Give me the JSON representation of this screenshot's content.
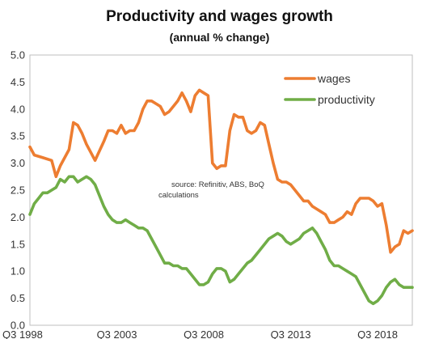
{
  "chart_data": {
    "type": "line",
    "title": "Productivity and wages growth",
    "subtitle": "(annual % change)",
    "xlabel": "",
    "ylabel": "",
    "ylim": [
      0.0,
      5.0
    ],
    "yticks": [
      "0.0",
      "0.5",
      "1.0",
      "1.5",
      "2.0",
      "2.5",
      "3.0",
      "3.5",
      "4.0",
      "4.5",
      "5.0"
    ],
    "xticks": [
      {
        "label": "Q3 1998",
        "x": 1998.75
      },
      {
        "label": "Q3 2003",
        "x": 2003.75
      },
      {
        "label": "Q3 2008",
        "x": 2008.75
      },
      {
        "label": "Q3 2013",
        "x": 2013.75
      },
      {
        "label": "Q3 2018",
        "x": 2018.75
      }
    ],
    "xlim": [
      1998.75,
      2020.75
    ],
    "legend_position": "top-right",
    "annotation": [
      "source:  Refinitiv, ABS, BoQ",
      "calculations"
    ],
    "series": [
      {
        "name": "wages",
        "color": "#ED7D31",
        "x": [
          1998.75,
          1999.0,
          1999.5,
          2000.0,
          2000.25,
          2000.5,
          2000.75,
          2001.0,
          2001.25,
          2001.5,
          2001.75,
          2002.0,
          2002.5,
          2003.0,
          2003.25,
          2003.5,
          2003.75,
          2004.0,
          2004.25,
          2004.5,
          2004.75,
          2005.0,
          2005.25,
          2005.5,
          2005.75,
          2006.0,
          2006.25,
          2006.5,
          2006.75,
          2007.0,
          2007.25,
          2007.5,
          2007.75,
          2008.0,
          2008.25,
          2008.5,
          2008.75,
          2009.0,
          2009.25,
          2009.5,
          2009.75,
          2010.0,
          2010.25,
          2010.5,
          2010.75,
          2011.0,
          2011.25,
          2011.5,
          2011.75,
          2012.0,
          2012.25,
          2012.5,
          2012.75,
          2013.0,
          2013.25,
          2013.5,
          2013.75,
          2014.0,
          2014.25,
          2014.5,
          2014.75,
          2015.0,
          2015.25,
          2015.5,
          2015.75,
          2016.0,
          2016.25,
          2016.5,
          2016.75,
          2017.0,
          2017.25,
          2017.5,
          2017.75,
          2018.0,
          2018.25,
          2018.5,
          2018.75,
          2019.0,
          2019.25,
          2019.5,
          2019.75,
          2020.0,
          2020.25,
          2020.5,
          2020.75
        ],
        "values": [
          3.3,
          3.15,
          3.1,
          3.05,
          2.75,
          2.95,
          3.1,
          3.25,
          3.75,
          3.7,
          3.55,
          3.35,
          3.05,
          3.4,
          3.6,
          3.6,
          3.55,
          3.7,
          3.55,
          3.6,
          3.6,
          3.75,
          4.0,
          4.15,
          4.15,
          4.1,
          4.05,
          3.9,
          3.95,
          4.05,
          4.15,
          4.3,
          4.15,
          3.95,
          4.25,
          4.35,
          4.3,
          4.25,
          3.0,
          2.9,
          2.95,
          2.95,
          3.6,
          3.9,
          3.85,
          3.85,
          3.6,
          3.55,
          3.6,
          3.75,
          3.7,
          3.35,
          3.0,
          2.7,
          2.65,
          2.65,
          2.6,
          2.5,
          2.4,
          2.3,
          2.3,
          2.2,
          2.15,
          2.1,
          2.05,
          1.9,
          1.9,
          1.95,
          2.0,
          2.1,
          2.05,
          2.25,
          2.35,
          2.35,
          2.35,
          2.3,
          2.2,
          2.25,
          1.85,
          1.35,
          1.45,
          1.5,
          1.75,
          1.7,
          1.75
        ]
      },
      {
        "name": "productivity",
        "color": "#70AD47",
        "x": [
          1998.75,
          1999.0,
          1999.25,
          1999.5,
          1999.75,
          2000.0,
          2000.25,
          2000.5,
          2000.75,
          2001.0,
          2001.25,
          2001.5,
          2001.75,
          2002.0,
          2002.25,
          2002.5,
          2002.75,
          2003.0,
          2003.25,
          2003.5,
          2003.75,
          2004.0,
          2004.25,
          2004.5,
          2004.75,
          2005.0,
          2005.25,
          2005.5,
          2005.75,
          2006.0,
          2006.25,
          2006.5,
          2006.75,
          2007.0,
          2007.25,
          2007.5,
          2007.75,
          2008.0,
          2008.25,
          2008.5,
          2008.75,
          2009.0,
          2009.25,
          2009.5,
          2009.75,
          2010.0,
          2010.25,
          2010.5,
          2010.75,
          2011.0,
          2011.25,
          2011.5,
          2011.75,
          2012.0,
          2012.25,
          2012.5,
          2012.75,
          2013.0,
          2013.25,
          2013.5,
          2013.75,
          2014.0,
          2014.25,
          2014.5,
          2014.75,
          2015.0,
          2015.25,
          2015.5,
          2015.75,
          2016.0,
          2016.25,
          2016.5,
          2016.75,
          2017.0,
          2017.25,
          2017.5,
          2017.75,
          2018.0,
          2018.25,
          2018.5,
          2018.75,
          2019.0,
          2019.25,
          2019.5,
          2019.75,
          2020.0,
          2020.25,
          2020.5,
          2020.75
        ],
        "values": [
          2.05,
          2.25,
          2.35,
          2.45,
          2.45,
          2.5,
          2.55,
          2.7,
          2.65,
          2.75,
          2.75,
          2.65,
          2.7,
          2.75,
          2.7,
          2.6,
          2.4,
          2.2,
          2.05,
          1.95,
          1.9,
          1.9,
          1.95,
          1.9,
          1.85,
          1.8,
          1.8,
          1.75,
          1.6,
          1.45,
          1.3,
          1.15,
          1.15,
          1.1,
          1.1,
          1.05,
          1.05,
          0.95,
          0.85,
          0.75,
          0.75,
          0.8,
          0.95,
          1.05,
          1.05,
          1.0,
          0.8,
          0.85,
          0.95,
          1.05,
          1.15,
          1.2,
          1.3,
          1.4,
          1.5,
          1.6,
          1.65,
          1.7,
          1.65,
          1.55,
          1.5,
          1.55,
          1.6,
          1.7,
          1.75,
          1.8,
          1.7,
          1.55,
          1.4,
          1.2,
          1.1,
          1.1,
          1.05,
          1.0,
          0.95,
          0.9,
          0.75,
          0.6,
          0.45,
          0.4,
          0.45,
          0.55,
          0.7,
          0.8,
          0.85,
          0.75,
          0.7,
          0.7,
          0.7
        ]
      }
    ]
  }
}
